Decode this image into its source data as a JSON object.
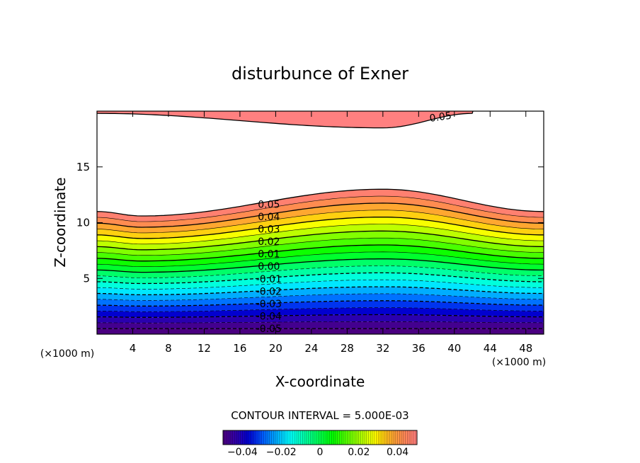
{
  "chart_data": {
    "type": "contour",
    "title": "disturbunce of Exner",
    "xlabel": "X-coordinate",
    "ylabel": "Z-coordinate",
    "x_unit_label": "(×1000 m)",
    "z_unit_label": "(×1000 m)",
    "xlim": [
      0,
      50
    ],
    "ylim": [
      0,
      20
    ],
    "x_ticks": [
      4,
      8,
      12,
      16,
      20,
      24,
      28,
      32,
      36,
      40,
      44,
      48
    ],
    "y_ticks": [
      5,
      10,
      15
    ],
    "contour_interval_text": "CONTOUR INTERVAL = 5.000E-03",
    "contour_interval": 0.005,
    "value_range": [
      -0.05,
      0.05
    ],
    "upper_band": {
      "value": 0.05,
      "label": "0.05",
      "base_z_at_x": [
        [
          0,
          19.8
        ],
        [
          32,
          18.5
        ],
        [
          42,
          19.8
        ]
      ]
    },
    "lower_field": {
      "top_boundary_z_at_x": [
        [
          0,
          11.0
        ],
        [
          5,
          10.6
        ],
        [
          32,
          13.0
        ],
        [
          50,
          11.0
        ]
      ],
      "bottom_z": 0.5,
      "contour_labels": [
        "0.05",
        "0.04",
        "0.03",
        "0.02",
        "0.01",
        "0.00",
        "-0.01",
        "-0.02",
        "-0.03",
        "-0.04",
        "-0.05"
      ],
      "negative_contours_dashed": true
    },
    "colorbar": {
      "ticks": [
        -0.04,
        -0.02,
        0,
        0.02,
        0.04
      ],
      "tick_labels": [
        "−0.04",
        "−0.02",
        "0",
        "0.02",
        "0.04"
      ]
    }
  }
}
